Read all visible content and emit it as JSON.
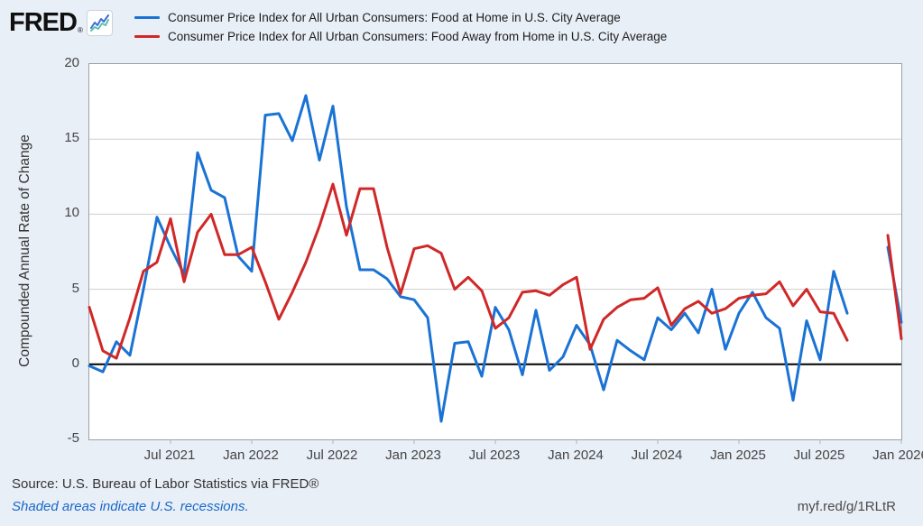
{
  "header": {
    "logo_text": "FRED",
    "logo_reg_mark": "®"
  },
  "legend": {
    "series": [
      {
        "label": "Consumer Price Index for All Urban Consumers: Food at Home in U.S. City Average"
      },
      {
        "label": "Consumer Price Index for All Urban Consumers: Food Away from Home in U.S. City Average"
      }
    ]
  },
  "footer": {
    "source": "Source: U.S. Bureau of Labor Statistics via FRED®",
    "recession_note": "Shaded areas indicate U.S. recessions.",
    "short_url": "myf.red/g/1RLtR"
  },
  "colors": {
    "background": "#e9eff7",
    "plot_background": "#ffffff",
    "plot_border": "#9aa0a6",
    "grid": "#cfcfcf",
    "zero_line": "#000000",
    "x_tick_mark": "#a9b6c2",
    "axis_text": "#444444",
    "series_blue": "#1a73d4",
    "series_red": "#d02828",
    "link_blue": "#1668c9"
  },
  "chart_data": {
    "type": "line",
    "title": "",
    "xlabel": "",
    "ylabel": "Compounded Annual Rate of Change",
    "ylim": [
      -5,
      20
    ],
    "y_ticks": [
      20,
      15,
      10,
      5,
      0,
      -5
    ],
    "grid": "horizontal",
    "legend_position": "top",
    "frequency": "monthly",
    "x_tick_labels": [
      "Jul 2021",
      "Jan 2022",
      "Jul 2022",
      "Jan 2023",
      "Jul 2023",
      "Jan 2024",
      "Jul 2024",
      "Jan 2025",
      "Jul 2025",
      "Jan 2026"
    ],
    "x_tick_month_index": [
      6,
      12,
      18,
      24,
      30,
      36,
      42,
      48,
      54,
      60
    ],
    "months": [
      "Jan 2021",
      "Feb 2021",
      "Mar 2021",
      "Apr 2021",
      "May 2021",
      "Jun 2021",
      "Jul 2021",
      "Aug 2021",
      "Sep 2021",
      "Oct 2021",
      "Nov 2021",
      "Dec 2021",
      "Jan 2022",
      "Feb 2022",
      "Mar 2022",
      "Apr 2022",
      "May 2022",
      "Jun 2022",
      "Jul 2022",
      "Aug 2022",
      "Sep 2022",
      "Oct 2022",
      "Nov 2022",
      "Dec 2022",
      "Jan 2023",
      "Feb 2023",
      "Mar 2023",
      "Apr 2023",
      "May 2023",
      "Jun 2023",
      "Jul 2023",
      "Aug 2023",
      "Sep 2023",
      "Oct 2023",
      "Nov 2023",
      "Dec 2023",
      "Jan 2024",
      "Feb 2024",
      "Mar 2024",
      "Apr 2024",
      "May 2024",
      "Jun 2024",
      "Jul 2024",
      "Aug 2024",
      "Sep 2024",
      "Oct 2024",
      "Nov 2024",
      "Dec 2024",
      "Jan 2025",
      "Feb 2025",
      "Mar 2025",
      "Apr 2025",
      "May 2025",
      "Jun 2025",
      "Jul 2025",
      "Aug 2025",
      "Sep 2025",
      "Oct 2025",
      "Nov 2025",
      "Dec 2025",
      "Jan 2026"
    ],
    "series": [
      {
        "name": "Consumer Price Index for All Urban Consumers: Food at Home in U.S. City Average",
        "color": "#1a73d4",
        "values": [
          -0.1,
          -0.5,
          1.5,
          0.6,
          5.0,
          9.8,
          7.8,
          6.0,
          14.1,
          11.6,
          11.1,
          7.2,
          6.2,
          16.6,
          16.7,
          14.9,
          17.9,
          13.6,
          17.2,
          10.5,
          6.3,
          6.3,
          5.7,
          4.5,
          4.3,
          3.1,
          -3.8,
          1.4,
          1.5,
          -0.8,
          3.8,
          2.3,
          -0.7,
          3.6,
          -0.4,
          0.5,
          2.6,
          1.3,
          -1.7,
          1.6,
          0.9,
          0.3,
          3.1,
          2.3,
          3.4,
          2.1,
          5.0,
          1.0,
          3.4,
          4.8,
          3.1,
          2.4,
          -2.4,
          2.9,
          0.3,
          6.2,
          3.4,
          null,
          null,
          7.8,
          2.8
        ]
      },
      {
        "name": "Consumer Price Index for All Urban Consumers: Food Away from Home in U.S. City Average",
        "color": "#d02828",
        "values": [
          3.8,
          0.9,
          0.4,
          3.1,
          6.2,
          6.8,
          9.7,
          5.5,
          8.8,
          10.0,
          7.3,
          7.3,
          7.8,
          5.5,
          3.0,
          4.8,
          6.8,
          9.2,
          12.0,
          8.6,
          11.7,
          11.7,
          7.8,
          4.7,
          7.7,
          7.9,
          7.4,
          5.0,
          5.8,
          4.9,
          2.4,
          3.1,
          4.8,
          4.9,
          4.6,
          5.3,
          5.8,
          1.0,
          3.0,
          3.8,
          4.3,
          4.4,
          5.1,
          2.6,
          3.7,
          4.2,
          3.4,
          3.7,
          4.4,
          4.6,
          4.7,
          5.5,
          3.9,
          5.0,
          3.5,
          3.4,
          1.6,
          null,
          null,
          8.6,
          1.7
        ]
      }
    ]
  }
}
